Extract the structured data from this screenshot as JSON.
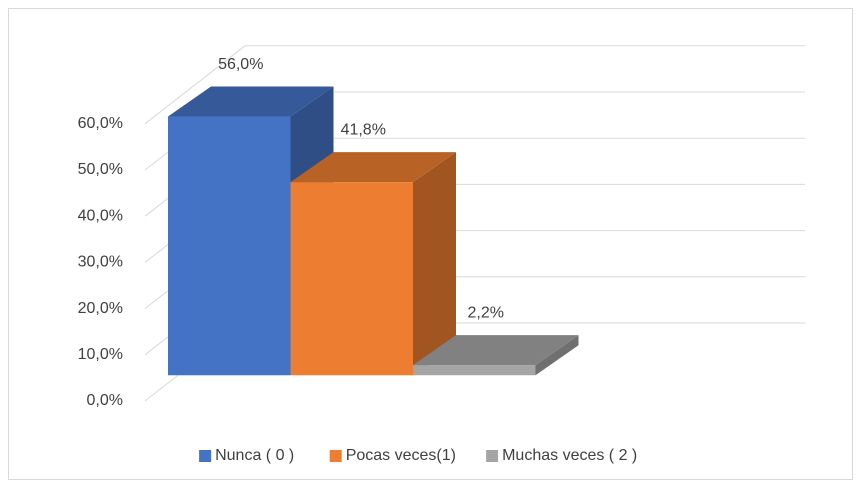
{
  "chart_data": {
    "type": "bar3d",
    "series": [
      {
        "name": "Nunca ( 0 )",
        "color": "#4472c4",
        "values": [
          56
        ],
        "value_labels": [
          "56,0%"
        ]
      },
      {
        "name": "Pocas veces(1)",
        "color": "#ed7d31",
        "values": [
          41.8
        ],
        "value_labels": [
          "41,8%"
        ]
      },
      {
        "name": "Muchas veces ( 2 )",
        "color": "#a5a5a5",
        "values": [
          2.2
        ],
        "value_labels": [
          "2,2%"
        ]
      }
    ],
    "ylim": [
      0,
      60
    ],
    "yticks": [
      {
        "value": 0,
        "label": "0,0%"
      },
      {
        "value": 10,
        "label": "10,0%"
      },
      {
        "value": 20,
        "label": "20,0%"
      },
      {
        "value": 30,
        "label": "30,0%"
      },
      {
        "value": 40,
        "label": "40,0%"
      },
      {
        "value": 50,
        "label": "50,0%"
      },
      {
        "value": 60,
        "label": "60,0%"
      }
    ],
    "grid": true,
    "legend": "bottom"
  }
}
